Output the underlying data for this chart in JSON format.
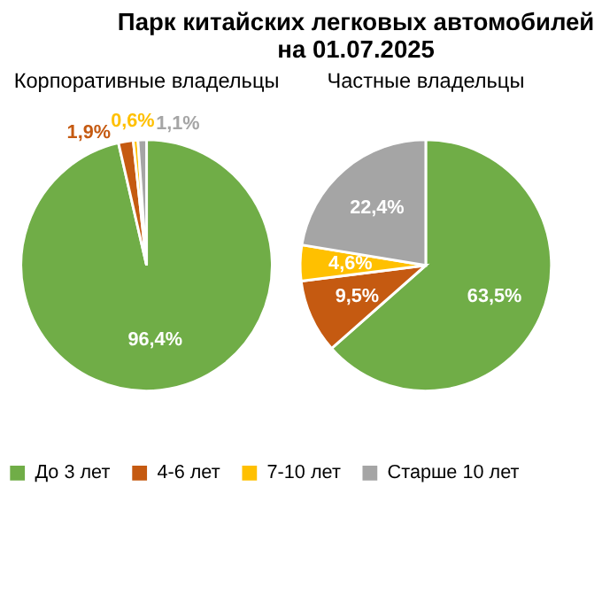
{
  "chart_data": {
    "type": "pie",
    "title": "Парк китайских легковых автомобилей\nна 01.07.2025",
    "categories": [
      "До 3 лет",
      "4-6 лет",
      "7-10 лет",
      "Старше 10 лет"
    ],
    "colors": [
      "#70ad47",
      "#c55a11",
      "#ffc000",
      "#a5a5a5"
    ],
    "legend": "bottom",
    "series": [
      {
        "name": "Корпоративные владельцы",
        "values": [
          96.4,
          1.9,
          0.6,
          1.1
        ],
        "value_labels": [
          "96,4%",
          "1,9%",
          "0,6%",
          "1,1%"
        ]
      },
      {
        "name": "Частные владельцы",
        "values": [
          63.5,
          9.5,
          4.6,
          22.4
        ],
        "value_labels": [
          "63,5%",
          "9,5%",
          "4,6%",
          "22,4%"
        ]
      }
    ]
  }
}
